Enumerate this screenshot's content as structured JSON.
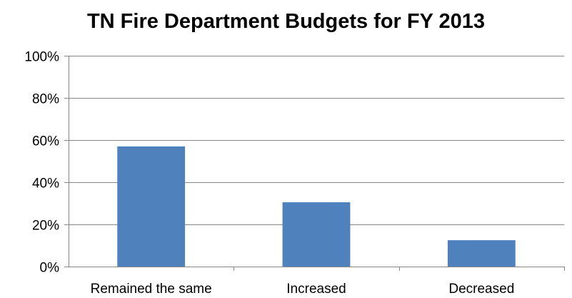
{
  "chart_data": {
    "type": "bar",
    "title": "TN Fire Department Budgets for FY 2013",
    "categories": [
      "Remained the same",
      "Increased",
      "Decreased"
    ],
    "series": [
      {
        "values": [
          57,
          30.5,
          12.5
        ]
      }
    ],
    "xlabel": "",
    "ylabel": "",
    "ylim": [
      0,
      100
    ],
    "yticks": [
      "0%",
      "20%",
      "40%",
      "60%",
      "80%",
      "100%"
    ],
    "grid": true,
    "legend": "none",
    "colors": {
      "bar": "#4f81bd",
      "grid": "#878787",
      "axis": "#878787",
      "text": "#000000"
    }
  }
}
